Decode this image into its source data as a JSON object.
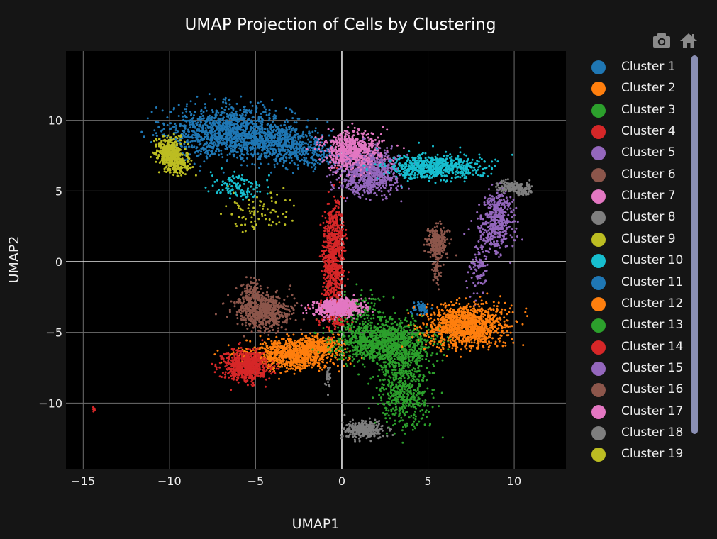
{
  "chart_data": {
    "type": "scatter",
    "title": "UMAP Projection of Cells by Clustering",
    "xlabel": "UMAP1",
    "ylabel": "UMAP2",
    "xlim": [
      -16,
      13
    ],
    "ylim": [
      -14.7,
      14.9
    ],
    "x_ticks": [
      -15,
      -10,
      -5,
      0,
      5,
      10
    ],
    "y_ticks": [
      -10,
      -5,
      0,
      5,
      10
    ],
    "grid": true,
    "legend_position": "right",
    "background_color": "#000000",
    "series": [
      {
        "name": "Cluster 1",
        "color": "#1f77b4",
        "values": [
          [
            -6.5,
            9.2,
            3.2,
            1.6,
            1300
          ],
          [
            -3.5,
            8.3,
            2.2,
            1.2,
            500
          ],
          [
            -1.5,
            7.5,
            1.6,
            1,
            150
          ]
        ]
      },
      {
        "name": "Cluster 2",
        "color": "#ff7f0e",
        "values": [
          [
            -3.0,
            -6.6,
            2.4,
            0.95,
            900
          ],
          [
            -1.6,
            -5.9,
            1.3,
            0.6,
            300
          ]
        ]
      },
      {
        "name": "Cluster 3",
        "color": "#2ca02c",
        "values": [
          [
            2.5,
            -5.6,
            2.6,
            1.2,
            1100
          ],
          [
            3.6,
            -9.4,
            1.3,
            2.1,
            450
          ],
          [
            1.0,
            -3.5,
            1.8,
            1.2,
            150
          ]
        ]
      },
      {
        "name": "Cluster 4",
        "color": "#d62728",
        "values": [
          [
            -0.5,
            0.0,
            0.55,
            3.3,
            700
          ],
          [
            -5.6,
            -7.4,
            1.2,
            0.95,
            700
          ],
          [
            -0.4,
            -3.8,
            1.1,
            1.0,
            80
          ],
          [
            -14.4,
            -10.5,
            0.05,
            0.4,
            8
          ]
        ]
      },
      {
        "name": "Cluster 5",
        "color": "#9467bd",
        "values": [
          [
            1.5,
            6.4,
            1.6,
            1.4,
            900
          ],
          [
            9.1,
            3.2,
            0.75,
            1.7,
            350
          ],
          [
            7.9,
            -0.5,
            0.6,
            1.6,
            80
          ]
        ]
      },
      {
        "name": "Cluster 6",
        "color": "#8c564b",
        "values": [
          [
            -4.6,
            -3.5,
            1.4,
            1.1,
            700
          ],
          [
            5.5,
            1.3,
            0.55,
            1.0,
            250
          ],
          [
            5.5,
            -0.6,
            0.25,
            0.9,
            50
          ]
        ]
      },
      {
        "name": "Cluster 7",
        "color": "#e377c2",
        "values": [
          [
            -0.3,
            -3.3,
            1.3,
            0.55,
            500
          ],
          [
            0.5,
            7.9,
            1.5,
            1.2,
            600
          ]
        ]
      },
      {
        "name": "Cluster 8",
        "color": "#7f7f7f",
        "values": [
          [
            1.3,
            -11.9,
            1.0,
            0.55,
            350
          ],
          [
            10.0,
            5.3,
            0.9,
            0.35,
            180
          ],
          [
            -0.8,
            -8.2,
            0.15,
            0.7,
            30
          ]
        ]
      },
      {
        "name": "Cluster 9",
        "color": "#bcbd22",
        "values": [
          [
            -10.0,
            7.7,
            0.7,
            0.9,
            450
          ],
          [
            -4.8,
            3.4,
            1.8,
            1.3,
            80
          ]
        ]
      },
      {
        "name": "Cluster 10",
        "color": "#17becf",
        "values": [
          [
            5.4,
            6.7,
            2.5,
            0.8,
            700
          ],
          [
            -6.0,
            5.3,
            1.4,
            0.7,
            120
          ]
        ]
      },
      {
        "name": "Cluster 11",
        "color": "#1f77b4",
        "values": [
          [
            4.6,
            -3.3,
            0.45,
            0.35,
            60
          ]
        ]
      },
      {
        "name": "Cluster 12",
        "color": "#ff7f0e",
        "values": [
          [
            7.2,
            -4.5,
            2.0,
            1.3,
            1200
          ]
        ]
      },
      {
        "name": "Cluster 13",
        "color": "#2ca02c",
        "values": [
          [
            3.4,
            -7.0,
            1.5,
            1.2,
            200
          ]
        ]
      },
      {
        "name": "Cluster 14",
        "color": "#d62728",
        "values": [
          [
            -0.4,
            2.5,
            0.4,
            2.0,
            100
          ]
        ]
      },
      {
        "name": "Cluster 15",
        "color": "#9467bd",
        "values": [
          [
            8.6,
            1.8,
            1.0,
            1.2,
            120
          ]
        ]
      },
      {
        "name": "Cluster 16",
        "color": "#8c564b",
        "values": [
          [
            -5.3,
            -2.2,
            0.6,
            1.0,
            100
          ]
        ]
      },
      {
        "name": "Cluster 17",
        "color": "#e377c2",
        "values": [
          [
            -0.1,
            -3.0,
            0.9,
            0.4,
            100
          ]
        ]
      },
      {
        "name": "Cluster 18",
        "color": "#7f7f7f",
        "values": [
          [
            10.6,
            5.0,
            0.3,
            0.3,
            40
          ]
        ]
      },
      {
        "name": "Cluster 19",
        "color": "#bcbd22",
        "values": [
          [
            -9.5,
            6.8,
            0.7,
            0.6,
            150
          ]
        ]
      }
    ]
  },
  "legend": {
    "items": [
      {
        "label": "Cluster 1",
        "color": "#1f77b4"
      },
      {
        "label": "Cluster 2",
        "color": "#ff7f0e"
      },
      {
        "label": "Cluster 3",
        "color": "#2ca02c"
      },
      {
        "label": "Cluster 4",
        "color": "#d62728"
      },
      {
        "label": "Cluster 5",
        "color": "#9467bd"
      },
      {
        "label": "Cluster 6",
        "color": "#8c564b"
      },
      {
        "label": "Cluster 7",
        "color": "#e377c2"
      },
      {
        "label": "Cluster 8",
        "color": "#7f7f7f"
      },
      {
        "label": "Cluster 9",
        "color": "#bcbd22"
      },
      {
        "label": "Cluster 10",
        "color": "#17becf"
      },
      {
        "label": "Cluster 11",
        "color": "#1f77b4"
      },
      {
        "label": "Cluster 12",
        "color": "#ff7f0e"
      },
      {
        "label": "Cluster 13",
        "color": "#2ca02c"
      },
      {
        "label": "Cluster 14",
        "color": "#d62728"
      },
      {
        "label": "Cluster 15",
        "color": "#9467bd"
      },
      {
        "label": "Cluster 16",
        "color": "#8c564b"
      },
      {
        "label": "Cluster 17",
        "color": "#e377c2"
      },
      {
        "label": "Cluster 18",
        "color": "#7f7f7f"
      },
      {
        "label": "Cluster 19",
        "color": "#bcbd22"
      }
    ]
  },
  "toolbar": {
    "camera_icon": "camera-icon",
    "home_icon": "home-icon",
    "icon_color": "#8a8a8a"
  }
}
